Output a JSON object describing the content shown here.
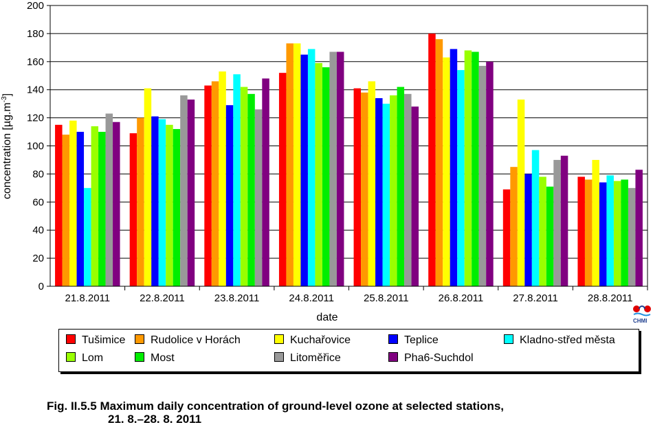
{
  "chart_data": {
    "type": "bar",
    "title": "",
    "xlabel": "date",
    "ylabel": "concentration [µg.m",
    "ylabel_sup": "-3",
    "ylabel_close": "]",
    "ylim": [
      0,
      200
    ],
    "yticks": [
      "0",
      "20",
      "40",
      "60",
      "80",
      "100",
      "120",
      "140",
      "160",
      "180",
      "200"
    ],
    "grid": true,
    "legend_position": "bottom",
    "categories": [
      "21.8.2011",
      "22.8.2011",
      "23.8.2011",
      "24.8.2011",
      "25.8.2011",
      "26.8.2011",
      "27.8.2011",
      "28.8.2011"
    ],
    "series": [
      {
        "name": "Tušimice",
        "color": "#ff0000",
        "values": [
          115,
          109,
          143,
          152,
          141,
          180,
          69,
          78
        ]
      },
      {
        "name": "Rudolice v Horách",
        "color": "#ff9900",
        "values": [
          108,
          120,
          146,
          173,
          138,
          176,
          85,
          76
        ]
      },
      {
        "name": "Kuchařovice",
        "color": "#ffff00",
        "values": [
          118,
          141,
          153,
          173,
          146,
          163,
          133,
          90
        ]
      },
      {
        "name": "Teplice",
        "color": "#0000ff",
        "values": [
          110,
          121,
          129,
          165,
          134,
          169,
          80,
          74
        ]
      },
      {
        "name": "Kladno-střed města",
        "color": "#00ffff",
        "values": [
          70,
          119,
          151,
          169,
          130,
          154,
          97,
          79
        ]
      },
      {
        "name": "Lom",
        "color": "#99ff00",
        "values": [
          114,
          115,
          142,
          159,
          136,
          168,
          78,
          75
        ]
      },
      {
        "name": "Most",
        "color": "#00ee00",
        "values": [
          110,
          112,
          137,
          156,
          142,
          167,
          71,
          76
        ]
      },
      {
        "name": "Litoměřice",
        "color": "#999999",
        "values": [
          123,
          136,
          126,
          167,
          137,
          157,
          90,
          70
        ]
      },
      {
        "name": "Pha6-Suchdol",
        "color": "#800080",
        "values": [
          117,
          133,
          148,
          167,
          128,
          160,
          93,
          83
        ]
      }
    ]
  },
  "logo": {
    "text": "CHMI"
  },
  "caption": {
    "line1": "Fig. II.5.5  Maximum daily concentration of ground-level ozone at selected stations,",
    "line2": "21. 8.–28. 8. 2011"
  }
}
